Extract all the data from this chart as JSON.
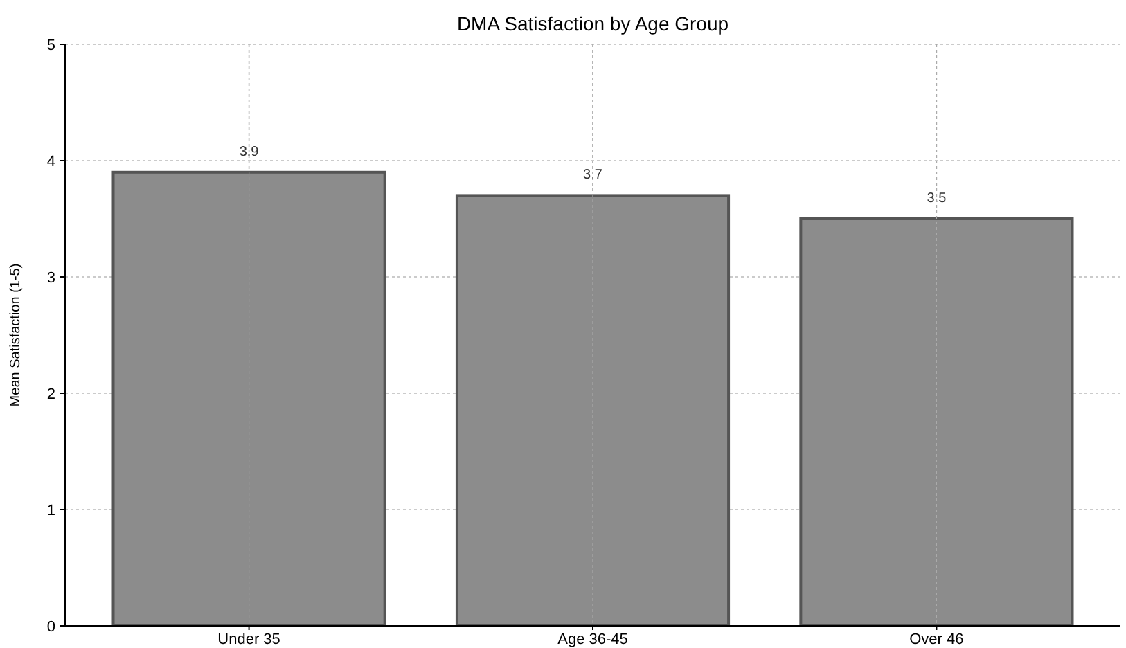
{
  "chart_data": {
    "type": "bar",
    "title": "DMA Satisfaction by Age Group",
    "ylabel": "Mean Satisfaction (1-5)",
    "categories": [
      "Under 35",
      "Age 36-45",
      "Over 46"
    ],
    "values": [
      3.9,
      3.7,
      3.5
    ],
    "color": "#8c8c8c",
    "ylim": [
      0,
      5
    ],
    "yticks": [
      0,
      1,
      2,
      3,
      4,
      5
    ],
    "grid": true,
    "data_labels": true
  }
}
